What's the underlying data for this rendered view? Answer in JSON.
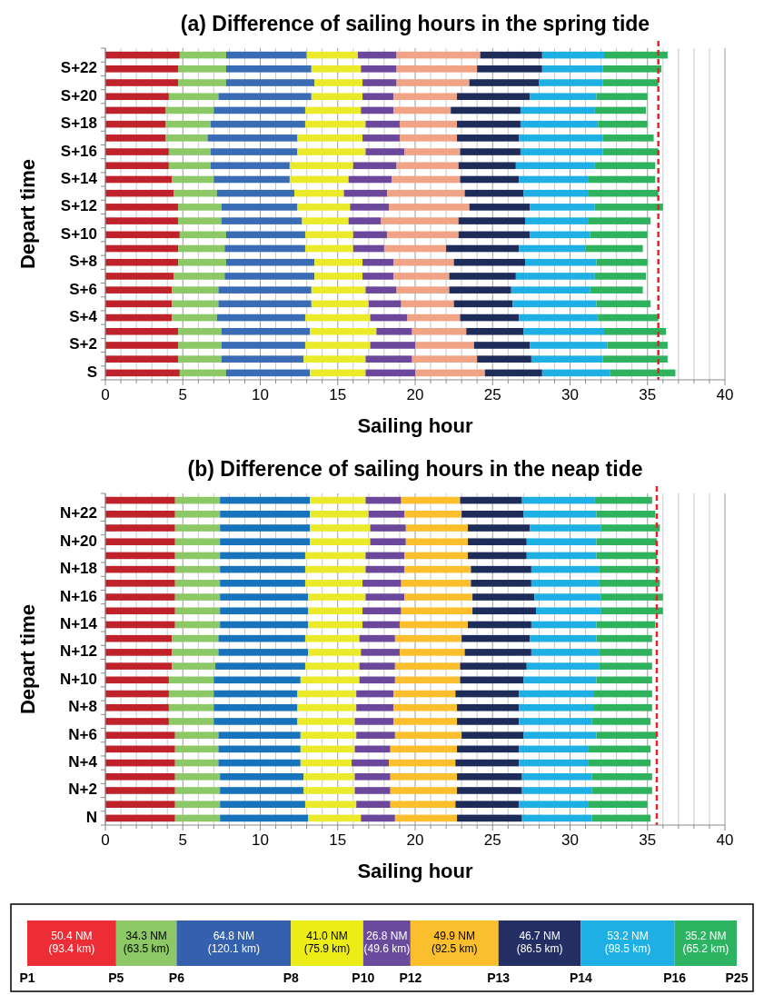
{
  "chart_data": [
    {
      "type": "bar",
      "orientation": "horizontal",
      "stacked": true,
      "title": "(a) Difference of sailing hours in the spring tide",
      "xlabel": "Sailing hour",
      "ylabel": "Depart time",
      "categories": [
        null,
        "S+22",
        null,
        "S+20",
        null,
        "S+18",
        null,
        "S+16",
        null,
        "S+14",
        null,
        "S+12",
        null,
        "S+10",
        null,
        "S+8",
        null,
        "S+6",
        null,
        "S+4",
        null,
        "S+2",
        null,
        "S"
      ],
      "xlim": [
        0,
        40
      ],
      "xticks": [
        0,
        {
          "value": 1,
          "label": null
        },
        {
          "value": 2,
          "label": null
        },
        {
          "value": 3,
          "label": null
        },
        {
          "value": 4,
          "label": null
        },
        5,
        {
          "value": 6,
          "label": null
        },
        {
          "value": 7,
          "label": null
        },
        {
          "value": 8,
          "label": null
        },
        {
          "value": 9,
          "label": null
        },
        10,
        {
          "value": 11,
          "label": null
        },
        {
          "value": 12,
          "label": null
        },
        {
          "value": 13,
          "label": null
        },
        {
          "value": 14,
          "label": null
        },
        15,
        {
          "value": 16,
          "label": null
        },
        {
          "value": 17,
          "label": null
        },
        {
          "value": 18,
          "label": null
        },
        {
          "value": 19,
          "label": null
        },
        20,
        {
          "value": 21,
          "label": null
        },
        {
          "value": 22,
          "label": null
        },
        {
          "value": 23,
          "label": null
        },
        {
          "value": 24,
          "label": null
        },
        25,
        {
          "value": 26,
          "label": null
        },
        {
          "value": 27,
          "label": null
        },
        {
          "value": 28,
          "label": null
        },
        {
          "value": 29,
          "label": null
        },
        30,
        {
          "value": 31,
          "label": null
        },
        {
          "value": 32,
          "label": null
        },
        {
          "value": 33,
          "label": null
        },
        {
          "value": 34,
          "label": null
        },
        35,
        {
          "value": 36,
          "label": null
        },
        {
          "value": 37,
          "label": null
        },
        {
          "value": 38,
          "label": null
        },
        {
          "value": 39,
          "label": null
        },
        40
      ],
      "grid": "x",
      "ref_lines": [
        {
          "axis": "x",
          "value": 35.7,
          "color": "#e8202a",
          "line_style": "dashed"
        }
      ],
      "series": [
        {
          "color": "#c0222b",
          "values": [
            4.8,
            4.7,
            4.7,
            4.1,
            3.9,
            3.9,
            3.9,
            4.1,
            4.1,
            4.3,
            4.4,
            4.7,
            4.7,
            4.8,
            4.7,
            4.7,
            4.4,
            4.3,
            4.3,
            4.3,
            4.7,
            4.7,
            4.7,
            4.8
          ]
        },
        {
          "color": "#8cc865",
          "values": [
            3.0,
            3.1,
            3.1,
            3.2,
            3.1,
            2.9,
            2.7,
            2.7,
            2.7,
            2.7,
            2.8,
            2.8,
            2.8,
            3.0,
            3.0,
            3.1,
            3.3,
            3.0,
            3.0,
            2.9,
            2.8,
            2.8,
            2.8,
            3.0
          ]
        },
        {
          "color": "#3a6bb5",
          "values": [
            5.2,
            5.5,
            5.7,
            6.0,
            5.9,
            6.1,
            5.8,
            5.6,
            5.1,
            4.9,
            5.0,
            4.9,
            5.2,
            5.1,
            5.2,
            5.7,
            5.8,
            6.0,
            6.0,
            5.7,
            5.7,
            5.4,
            5.3,
            5.4
          ]
        },
        {
          "color": "#eaea2a",
          "values": [
            3.3,
            3.2,
            3.1,
            3.3,
            3.6,
            3.9,
            4.2,
            4.4,
            4.1,
            3.8,
            3.2,
            3.4,
            3.0,
            3.1,
            3.1,
            3.1,
            3.1,
            3.5,
            3.7,
            4.2,
            4.3,
            4.2,
            4.0,
            3.6
          ]
        },
        {
          "color": "#6b489c",
          "values": [
            2.5,
            2.3,
            2.2,
            2.0,
            2.1,
            2.2,
            2.4,
            2.5,
            2.8,
            2.8,
            2.8,
            2.5,
            2.1,
            2.2,
            2.0,
            2.0,
            2.0,
            2.0,
            2.1,
            2.4,
            2.3,
            2.9,
            3.0,
            3.2
          ]
        },
        {
          "color": "#f0a385",
          "values": [
            5.4,
            5.2,
            4.7,
            4.1,
            3.7,
            3.7,
            3.7,
            3.6,
            4.0,
            4.4,
            5.0,
            5.2,
            5.0,
            4.6,
            4.0,
            3.9,
            3.6,
            3.4,
            3.4,
            3.4,
            3.5,
            3.8,
            4.2,
            4.5
          ]
        },
        {
          "color": "#1e2c5a",
          "values": [
            4.0,
            4.2,
            4.5,
            4.7,
            4.5,
            4.1,
            4.0,
            3.9,
            3.7,
            3.8,
            3.8,
            3.9,
            4.3,
            4.6,
            4.7,
            4.6,
            4.3,
            4.0,
            3.8,
            3.8,
            3.7,
            3.6,
            3.5,
            3.7
          ]
        },
        {
          "color": "#1eb0e4",
          "values": [
            4.0,
            3.9,
            4.1,
            4.3,
            4.8,
            5.0,
            5.4,
            5.3,
            5.1,
            4.5,
            4.2,
            4.2,
            4.1,
            3.9,
            4.3,
            4.6,
            5.1,
            5.1,
            5.4,
            5.1,
            5.2,
            5.0,
            4.6,
            4.4
          ]
        },
        {
          "color": "#2fb25e",
          "values": [
            4.1,
            3.8,
            3.6,
            3.3,
            3.3,
            3.2,
            3.3,
            3.6,
            3.9,
            4.3,
            4.5,
            4.4,
            4.0,
            3.7,
            3.7,
            3.3,
            3.3,
            3.4,
            3.5,
            3.9,
            4.0,
            3.9,
            4.2,
            4.2
          ]
        }
      ]
    },
    {
      "type": "bar",
      "orientation": "horizontal",
      "stacked": true,
      "title": "(b) Difference of sailing hours in the neap tide",
      "xlabel": "Sailing hour",
      "ylabel": "Depart time",
      "categories": [
        null,
        "N+22",
        null,
        "N+20",
        null,
        "N+18",
        null,
        "N+16",
        null,
        "N+14",
        null,
        "N+12",
        null,
        "N+10",
        null,
        "N+8",
        null,
        "N+6",
        null,
        "N+4",
        null,
        "N+2",
        null,
        "N"
      ],
      "xlim": [
        0,
        40
      ],
      "xticks": [
        0,
        {
          "value": 1,
          "label": null
        },
        {
          "value": 2,
          "label": null
        },
        {
          "value": 3,
          "label": null
        },
        {
          "value": 4,
          "label": null
        },
        5,
        {
          "value": 6,
          "label": null
        },
        {
          "value": 7,
          "label": null
        },
        {
          "value": 8,
          "label": null
        },
        {
          "value": 9,
          "label": null
        },
        10,
        {
          "value": 11,
          "label": null
        },
        {
          "value": 12,
          "label": null
        },
        {
          "value": 13,
          "label": null
        },
        {
          "value": 14,
          "label": null
        },
        15,
        {
          "value": 16,
          "label": null
        },
        {
          "value": 17,
          "label": null
        },
        {
          "value": 18,
          "label": null
        },
        {
          "value": 19,
          "label": null
        },
        20,
        {
          "value": 21,
          "label": null
        },
        {
          "value": 22,
          "label": null
        },
        {
          "value": 23,
          "label": null
        },
        {
          "value": 24,
          "label": null
        },
        25,
        {
          "value": 26,
          "label": null
        },
        {
          "value": 27,
          "label": null
        },
        {
          "value": 28,
          "label": null
        },
        {
          "value": 29,
          "label": null
        },
        30,
        {
          "value": 31,
          "label": null
        },
        {
          "value": 32,
          "label": null
        },
        {
          "value": 33,
          "label": null
        },
        {
          "value": 34,
          "label": null
        },
        35,
        {
          "value": 36,
          "label": null
        },
        {
          "value": 37,
          "label": null
        },
        {
          "value": 38,
          "label": null
        },
        {
          "value": 39,
          "label": null
        },
        40
      ],
      "grid": "x",
      "ref_lines": [
        {
          "axis": "x",
          "value": 35.6,
          "color": "#e8202a",
          "line_style": "dashed"
        }
      ],
      "series": [
        {
          "color": "#c0222b",
          "values": [
            4.5,
            4.5,
            4.5,
            4.5,
            4.5,
            4.5,
            4.5,
            4.5,
            4.5,
            4.5,
            4.3,
            4.3,
            4.3,
            4.1,
            4.1,
            4.1,
            4.1,
            4.5,
            4.5,
            4.5,
            4.5,
            4.5,
            4.5,
            4.5
          ]
        },
        {
          "color": "#8cc865",
          "values": [
            2.9,
            2.9,
            2.9,
            2.9,
            2.9,
            2.9,
            2.9,
            2.9,
            2.9,
            2.9,
            3.0,
            3.0,
            2.8,
            2.9,
            2.9,
            2.9,
            2.9,
            2.8,
            2.8,
            2.8,
            2.9,
            2.9,
            2.9,
            2.9
          ]
        },
        {
          "color": "#1773bb",
          "values": [
            5.8,
            5.8,
            5.8,
            5.8,
            5.5,
            5.5,
            5.5,
            5.7,
            5.7,
            5.7,
            5.6,
            5.8,
            5.8,
            5.6,
            5.4,
            5.4,
            5.4,
            5.3,
            5.3,
            5.3,
            5.4,
            5.4,
            5.5,
            5.7
          ]
        },
        {
          "color": "#eaea2a",
          "values": [
            3.6,
            3.8,
            3.9,
            3.9,
            3.9,
            3.9,
            3.7,
            3.7,
            3.5,
            3.5,
            3.5,
            3.4,
            3.5,
            3.8,
            3.8,
            3.8,
            3.7,
            3.6,
            3.5,
            3.3,
            3.3,
            3.3,
            3.3,
            3.4
          ]
        },
        {
          "color": "#6b489c",
          "values": [
            2.3,
            2.3,
            2.3,
            2.3,
            2.5,
            2.5,
            2.5,
            2.5,
            2.5,
            2.4,
            2.3,
            2.5,
            2.3,
            2.3,
            2.4,
            2.4,
            2.5,
            2.5,
            2.3,
            2.4,
            2.3,
            2.3,
            2.2,
            2.2
          ]
        },
        {
          "color": "#fbbf2d",
          "values": [
            3.8,
            3.7,
            4.0,
            4.0,
            4.1,
            4.3,
            4.5,
            4.4,
            4.6,
            4.4,
            4.3,
            4.2,
            4.2,
            4.2,
            4.0,
            4.1,
            4.1,
            4.3,
            4.3,
            4.3,
            4.3,
            4.3,
            4.2,
            4.0
          ]
        },
        {
          "color": "#1e2c5a",
          "values": [
            4.0,
            4.0,
            4.0,
            3.8,
            3.8,
            3.9,
            3.9,
            4.0,
            4.1,
            4.1,
            4.4,
            4.3,
            4.3,
            4.1,
            4.1,
            4.0,
            4.0,
            4.0,
            4.0,
            4.1,
            4.2,
            4.2,
            4.1,
            4.2
          ]
        },
        {
          "color": "#1eb0e4",
          "values": [
            4.7,
            4.7,
            4.6,
            4.5,
            4.5,
            4.4,
            4.4,
            4.3,
            4.2,
            4.2,
            4.3,
            4.4,
            4.7,
            4.7,
            4.8,
            4.8,
            4.7,
            4.7,
            4.5,
            4.5,
            4.5,
            4.5,
            4.5,
            4.5
          ]
        },
        {
          "color": "#2fb25e",
          "values": [
            3.7,
            3.8,
            3.8,
            3.9,
            3.9,
            3.9,
            3.9,
            4.0,
            4.0,
            3.8,
            3.6,
            3.4,
            3.4,
            3.6,
            3.8,
            3.8,
            3.8,
            3.9,
            4.0,
            4.0,
            3.9,
            3.9,
            3.8,
            3.8
          ]
        }
      ]
    },
    {
      "type": "bar",
      "orientation": "horizontal",
      "stacked": true,
      "categories": [
        null
      ],
      "series": [
        {
          "color": "#ec2d35",
          "values": [
            50.4
          ],
          "value_labels": [
            "50.4 NM (93.4 km)"
          ]
        },
        {
          "color": "#8cc865",
          "values": [
            34.3
          ],
          "value_labels": [
            "34.3 NM (63.5 km)"
          ]
        },
        {
          "color": "#3560ad",
          "values": [
            64.8
          ],
          "value_labels": [
            "64.8 NM (120.1 km)"
          ]
        },
        {
          "color": "#ecec17",
          "values": [
            41.0
          ],
          "value_labels": [
            "41.0 NM (75.9 km)"
          ]
        },
        {
          "color": "#6a4a9c",
          "values": [
            26.8
          ],
          "value_labels": [
            "26.8 NM (49.6 km)"
          ]
        },
        {
          "color": "#fbbf2d",
          "values": [
            49.9
          ],
          "value_labels": [
            "49.9 NM (92.5 km)"
          ]
        },
        {
          "color": "#232e63",
          "values": [
            46.7
          ],
          "value_labels": [
            "46.7 NM (86.5 km)"
          ]
        },
        {
          "color": "#1eb0e4",
          "values": [
            53.2
          ],
          "value_labels": [
            "53.2 NM (98.5 km)"
          ]
        },
        {
          "color": "#2db462",
          "values": [
            35.2
          ],
          "value_labels": [
            "35.2 NM (65.2 km)"
          ]
        }
      ],
      "annotations": [
        "P1",
        "P5",
        "P6",
        "P8",
        "P10",
        "P12",
        "P13",
        "P14",
        "P16",
        "P25"
      ]
    }
  ]
}
